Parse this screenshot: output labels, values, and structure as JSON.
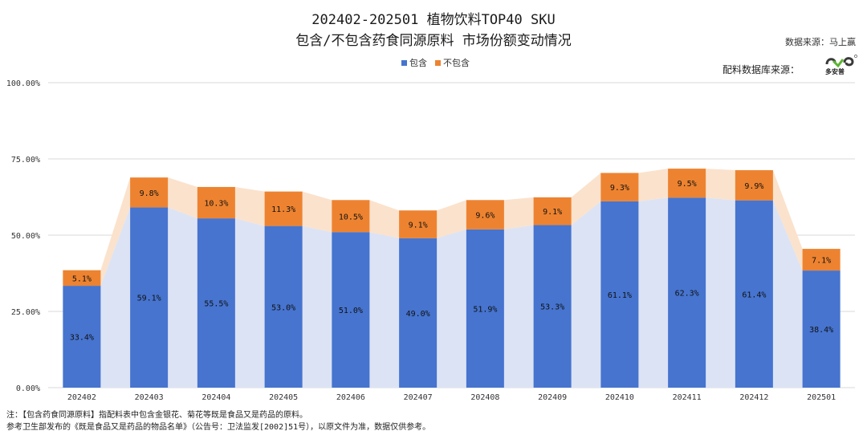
{
  "title_line1": "202402-202501 植物饮料TOP40 SKU",
  "title_line2": "包含/不包含药食同源原料 市场份额变动情况",
  "data_source": "数据来源：马上赢",
  "db_source": "配料数据库来源：",
  "logo_text": "多安普",
  "note_line1": "注：【包含药食同源原料】指配料表中包含金银花、菊花等既是食品又是药品的原料。",
  "note_line2": "参考卫生部发布的《既是食品又是药品的物品名单》（公告号：卫法监发[2002]51号），以原文件为准，数据仅供参考。",
  "colors": {
    "include": "#4674cf",
    "exclude": "#ed8330",
    "include_area": "#dce3f5",
    "exclude_area": "#fbe2cc",
    "grid": "#d9d9d9"
  },
  "chart_data": {
    "type": "bar",
    "stacked": true,
    "categories": [
      "202402",
      "202403",
      "202404",
      "202405",
      "202406",
      "202407",
      "202408",
      "202409",
      "202410",
      "202411",
      "202412",
      "202501"
    ],
    "series": [
      {
        "name": "包含",
        "values": [
          33.4,
          59.1,
          55.5,
          53.0,
          51.0,
          49.0,
          51.9,
          53.3,
          61.1,
          62.3,
          61.4,
          38.4
        ]
      },
      {
        "name": "不包含",
        "values": [
          5.1,
          9.8,
          10.3,
          11.3,
          10.5,
          9.1,
          9.6,
          9.1,
          9.3,
          9.5,
          9.9,
          7.1
        ]
      }
    ],
    "ylim": [
      0,
      100
    ],
    "yticks": [
      "0.00%",
      "25.00%",
      "50.00%",
      "75.00%",
      "100.00%"
    ],
    "grid": true,
    "legend": "top-center"
  }
}
